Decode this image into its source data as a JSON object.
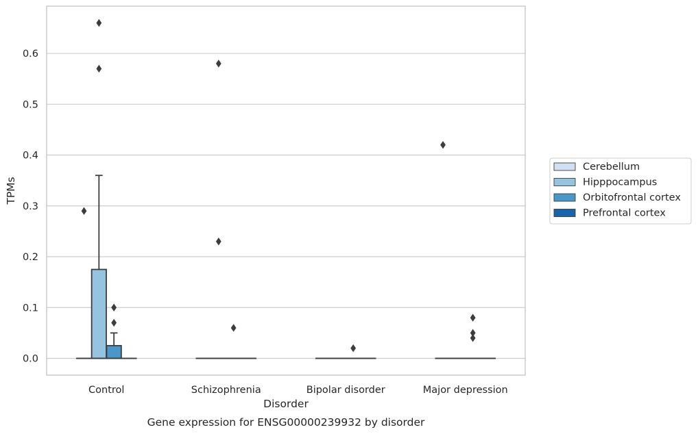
{
  "chart_data": {
    "type": "box",
    "title": "",
    "caption": "Gene expression for ENSG00000239932 by disorder",
    "xlabel": "Disorder",
    "ylabel": "TPMs",
    "ylim": [
      -0.033,
      0.693
    ],
    "yticks": [
      0.0,
      0.1,
      0.2,
      0.3,
      0.4,
      0.5,
      0.6
    ],
    "ytick_labels": [
      "0.0",
      "0.1",
      "0.2",
      "0.3",
      "0.4",
      "0.5",
      "0.6"
    ],
    "grid": true,
    "legend_position": "right",
    "categories": [
      "Control",
      "Schizophrenia",
      "Bipolar disorder",
      "Major depression"
    ],
    "series": [
      {
        "name": "Cerebellum",
        "color": "#d0e1f2",
        "boxes": [
          {
            "q1": 0,
            "median": 0,
            "q3": 0,
            "whisker_low": 0,
            "whisker_high": 0,
            "outliers": []
          },
          {
            "q1": 0,
            "median": 0,
            "q3": 0,
            "whisker_low": 0,
            "whisker_high": 0,
            "outliers": []
          },
          {
            "q1": 0,
            "median": 0,
            "q3": 0,
            "whisker_low": 0,
            "whisker_high": 0,
            "outliers": []
          },
          {
            "q1": 0,
            "median": 0,
            "q3": 0,
            "whisker_low": 0,
            "whisker_high": 0,
            "outliers": []
          }
        ]
      },
      {
        "name": "Hipppocampus",
        "color": "#94c4df",
        "boxes": [
          {
            "q1": 0,
            "median": 0,
            "q3": 0.175,
            "whisker_low": 0,
            "whisker_high": 0.36,
            "outliers": [
              0.57,
              0.66
            ]
          },
          {
            "q1": 0,
            "median": 0,
            "q3": 0,
            "whisker_low": 0,
            "whisker_high": 0,
            "outliers": [
              0.23,
              0.58
            ]
          },
          {
            "q1": 0,
            "median": 0,
            "q3": 0,
            "whisker_low": 0,
            "whisker_high": 0,
            "outliers": []
          },
          {
            "q1": 0,
            "median": 0,
            "q3": 0,
            "whisker_low": 0,
            "whisker_high": 0,
            "outliers": []
          }
        ]
      },
      {
        "name": "Orbitofrontal cortex",
        "color": "#4a98c9",
        "boxes": [
          {
            "q1": 0,
            "median": 0,
            "q3": 0.025,
            "whisker_low": 0,
            "whisker_high": 0.05,
            "outliers": [
              0.07,
              0.1
            ]
          },
          {
            "q1": 0,
            "median": 0,
            "q3": 0,
            "whisker_low": 0,
            "whisker_high": 0,
            "outliers": [
              0.06
            ]
          },
          {
            "q1": 0,
            "median": 0,
            "q3": 0,
            "whisker_low": 0,
            "whisker_high": 0,
            "outliers": [
              0.02
            ]
          },
          {
            "q1": 0,
            "median": 0,
            "q3": 0,
            "whisker_low": 0,
            "whisker_high": 0,
            "outliers": [
              0.04,
              0.05,
              0.08
            ]
          }
        ]
      },
      {
        "name": "Prefrontal cortex",
        "color": "#1764ab",
        "boxes": [
          {
            "q1": 0,
            "median": 0,
            "q3": 0,
            "whisker_low": 0,
            "whisker_high": 0,
            "outliers": []
          },
          {
            "q1": 0,
            "median": 0,
            "q3": 0,
            "whisker_low": 0,
            "whisker_high": 0,
            "outliers": []
          },
          {
            "q1": 0,
            "median": 0,
            "q3": 0,
            "whisker_low": 0,
            "whisker_high": 0,
            "outliers": []
          },
          {
            "q1": 0,
            "median": 0,
            "q3": 0,
            "whisker_low": 0,
            "whisker_high": 0,
            "outliers": []
          }
        ]
      }
    ],
    "extra_outliers": [
      {
        "category": "Control",
        "series": "Cerebellum",
        "value": 0.29
      },
      {
        "category": "Major depression",
        "series": "Cerebellum",
        "value": 0.42
      }
    ]
  }
}
